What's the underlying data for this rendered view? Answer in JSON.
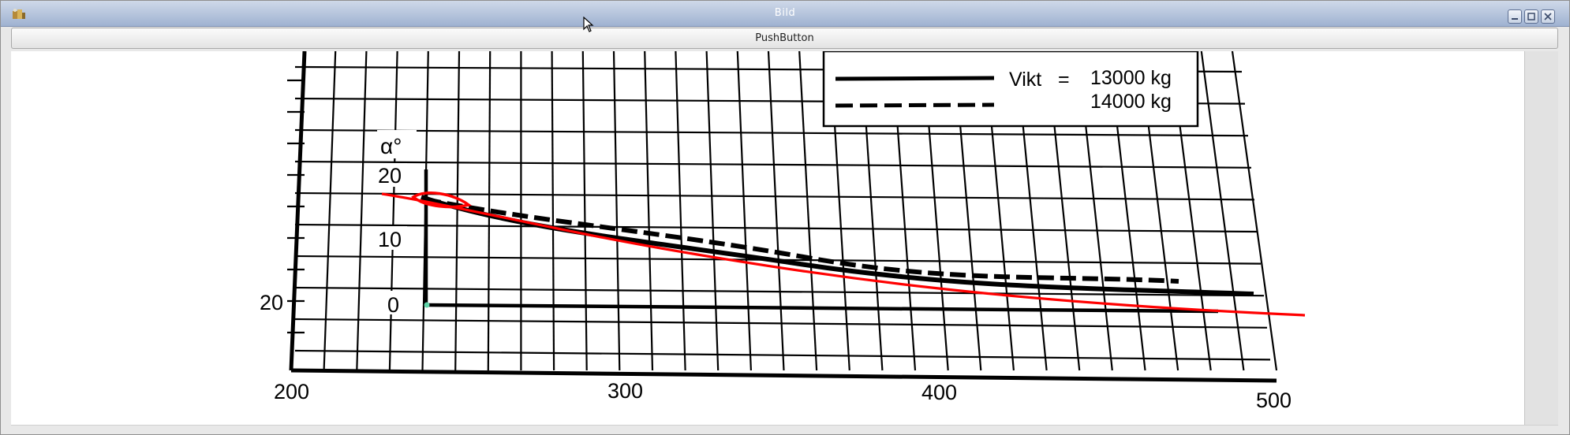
{
  "window": {
    "title": "Bild"
  },
  "toolbar": {
    "push_button_label": "PushButton"
  },
  "image": {
    "alpha_label": "α°",
    "alpha_ticks": [
      "20",
      "10",
      "0"
    ],
    "left_margin_label": "20",
    "x_ticks": [
      "200",
      "300",
      "400",
      "500"
    ],
    "legend": {
      "label": "Vikt",
      "equals": "=",
      "entries": [
        "13000 kg",
        "14000 kg"
      ]
    },
    "colors": {
      "ink": "#000000",
      "annotation": "#ff0000",
      "marker": "#5fd3a8"
    }
  }
}
